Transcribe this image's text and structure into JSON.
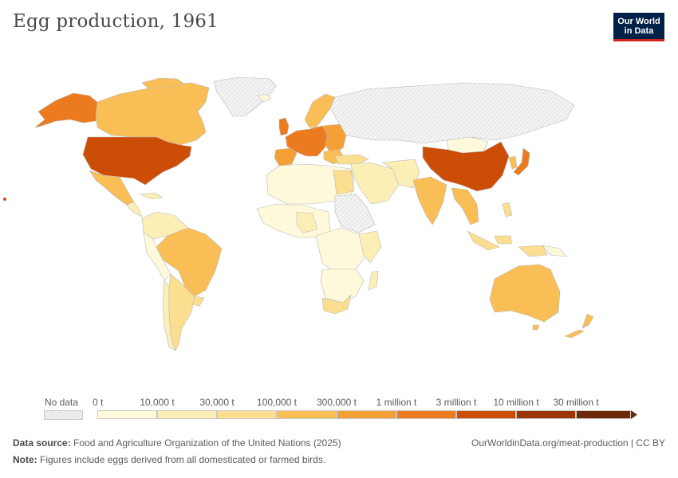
{
  "title": "Egg production, 1961",
  "logo": {
    "line1": "Our World",
    "line2": "in Data"
  },
  "legend": {
    "no_data_label": "No data",
    "ticks": [
      "0 t",
      "10,000 t",
      "30,000 t",
      "100,000 t",
      "300,000 t",
      "1 million t",
      "3 million t",
      "10 million t",
      "30 million t"
    ],
    "colors": [
      "#fef9db",
      "#fcefb6",
      "#fbde8f",
      "#f9be55",
      "#f5a036",
      "#ec7b1f",
      "#cc4d06",
      "#9c3409",
      "#6b2a07"
    ]
  },
  "source": {
    "label": "Data source:",
    "text": "Food and Agriculture Organization of the United Nations (2025)"
  },
  "note": {
    "label": "Note:",
    "text": "Figures include eggs derived from all domesticated or farmed birds."
  },
  "attribution": "OurWorldinData.org/meat-production | CC BY"
}
